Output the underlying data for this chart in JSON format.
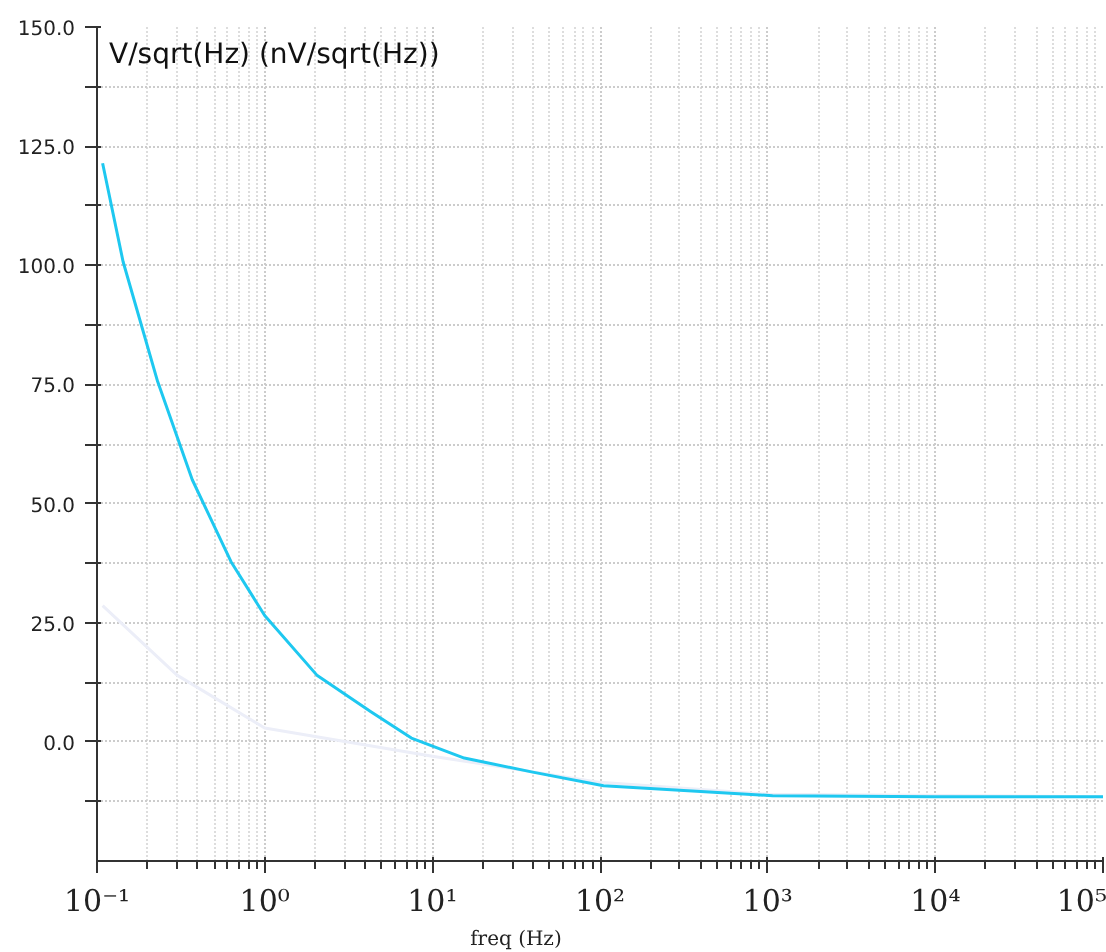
{
  "chart_data": {
    "type": "line",
    "ylabel": "V/sqrt(Hz) (nV/sqrt(Hz))",
    "xlabel": "freq (Hz)",
    "log": "x",
    "grid": true,
    "line_style": "solid",
    "marker": "none",
    "xlim": [
      0.1,
      100000
    ],
    "xticks": [
      {
        "value": 0.1,
        "label": "10⁻¹"
      },
      {
        "value": 1,
        "label": "10⁰"
      },
      {
        "value": 10,
        "label": "10¹"
      },
      {
        "value": 100,
        "label": "10²"
      },
      {
        "value": 1000,
        "label": "10³"
      },
      {
        "value": 10000,
        "label": "10⁴"
      },
      {
        "value": 100000,
        "label": "10⁵"
      }
    ],
    "ylim": [
      -25,
      150
    ],
    "yticks": [
      {
        "value": -12.5,
        "label": null
      },
      {
        "value": 0,
        "label": "0.0"
      },
      {
        "value": 12.5,
        "label": null
      },
      {
        "value": 25,
        "label": "25.0"
      },
      {
        "value": 37.5,
        "label": null
      },
      {
        "value": 50,
        "label": "50.0"
      },
      {
        "value": 62.5,
        "label": null
      },
      {
        "value": 75,
        "label": "75.0"
      },
      {
        "value": 87.5,
        "label": null
      },
      {
        "value": 100,
        "label": "100.0"
      },
      {
        "value": 112.5,
        "label": null
      },
      {
        "value": 125,
        "label": "125.0"
      },
      {
        "value": 137.5,
        "label": null
      },
      {
        "value": 150,
        "label": "150.0"
      }
    ],
    "series": [
      {
        "color": "#eceef8",
        "x": [
          0.108,
          0.3,
          1,
          10,
          100,
          1000,
          100000
        ],
        "values": [
          28.6,
          14,
          2.9,
          -3,
          -8.5,
          -11,
          -11.5
        ]
      },
      {
        "color": "#1ec8f0",
        "x": [
          0.108,
          0.143,
          0.23,
          0.37,
          0.63,
          1.0,
          2.06,
          4.3,
          7.5,
          15.5,
          39,
          105,
          1070,
          10000,
          100000
        ],
        "values": [
          121.4,
          100.8,
          75.6,
          55.0,
          37.8,
          26.5,
          13.9,
          6.3,
          0.8,
          -3.4,
          -6.3,
          -9.2,
          -11.3,
          -11.5,
          -11.5
        ]
      }
    ]
  }
}
